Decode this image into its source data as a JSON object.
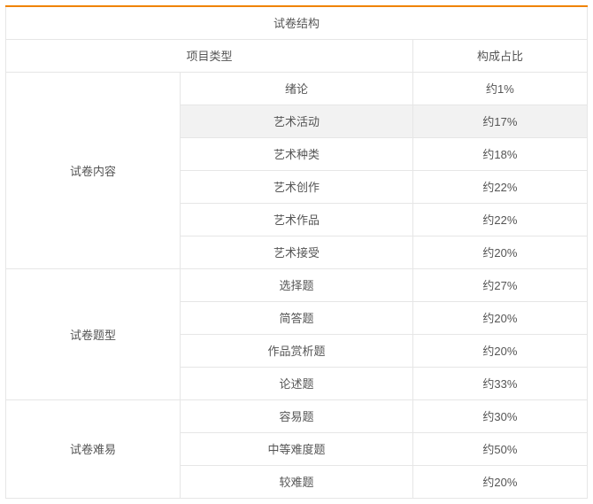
{
  "title": "试卷结构",
  "header": {
    "item_type": "项目类型",
    "ratio": "构成占比"
  },
  "sections": [
    {
      "name": "试卷内容",
      "rows": [
        {
          "item": "绪论",
          "ratio": "约1%",
          "highlight": false
        },
        {
          "item": "艺术活动",
          "ratio": "约17%",
          "highlight": true
        },
        {
          "item": "艺术种类",
          "ratio": "约18%",
          "highlight": false
        },
        {
          "item": "艺术创作",
          "ratio": "约22%",
          "highlight": false
        },
        {
          "item": "艺术作品",
          "ratio": "约22%",
          "highlight": false
        },
        {
          "item": "艺术接受",
          "ratio": "约20%",
          "highlight": false
        }
      ]
    },
    {
      "name": "试卷题型",
      "rows": [
        {
          "item": "选择题",
          "ratio": "约27%",
          "highlight": false
        },
        {
          "item": "简答题",
          "ratio": "约20%",
          "highlight": false
        },
        {
          "item": "作品赏析题",
          "ratio": "约20%",
          "highlight": false
        },
        {
          "item": "论述题",
          "ratio": "约33%",
          "highlight": false
        }
      ]
    },
    {
      "name": "试卷难易",
      "rows": [
        {
          "item": "容易题",
          "ratio": "约30%",
          "highlight": false
        },
        {
          "item": "中等难度题",
          "ratio": "约50%",
          "highlight": false
        },
        {
          "item": "较难题",
          "ratio": "约20%",
          "highlight": false
        }
      ]
    }
  ],
  "colors": {
    "accent": "#f08300",
    "border": "#e6e6e6",
    "highlight_bg": "#f2f2f2",
    "text": "#555555",
    "background": "#ffffff"
  }
}
